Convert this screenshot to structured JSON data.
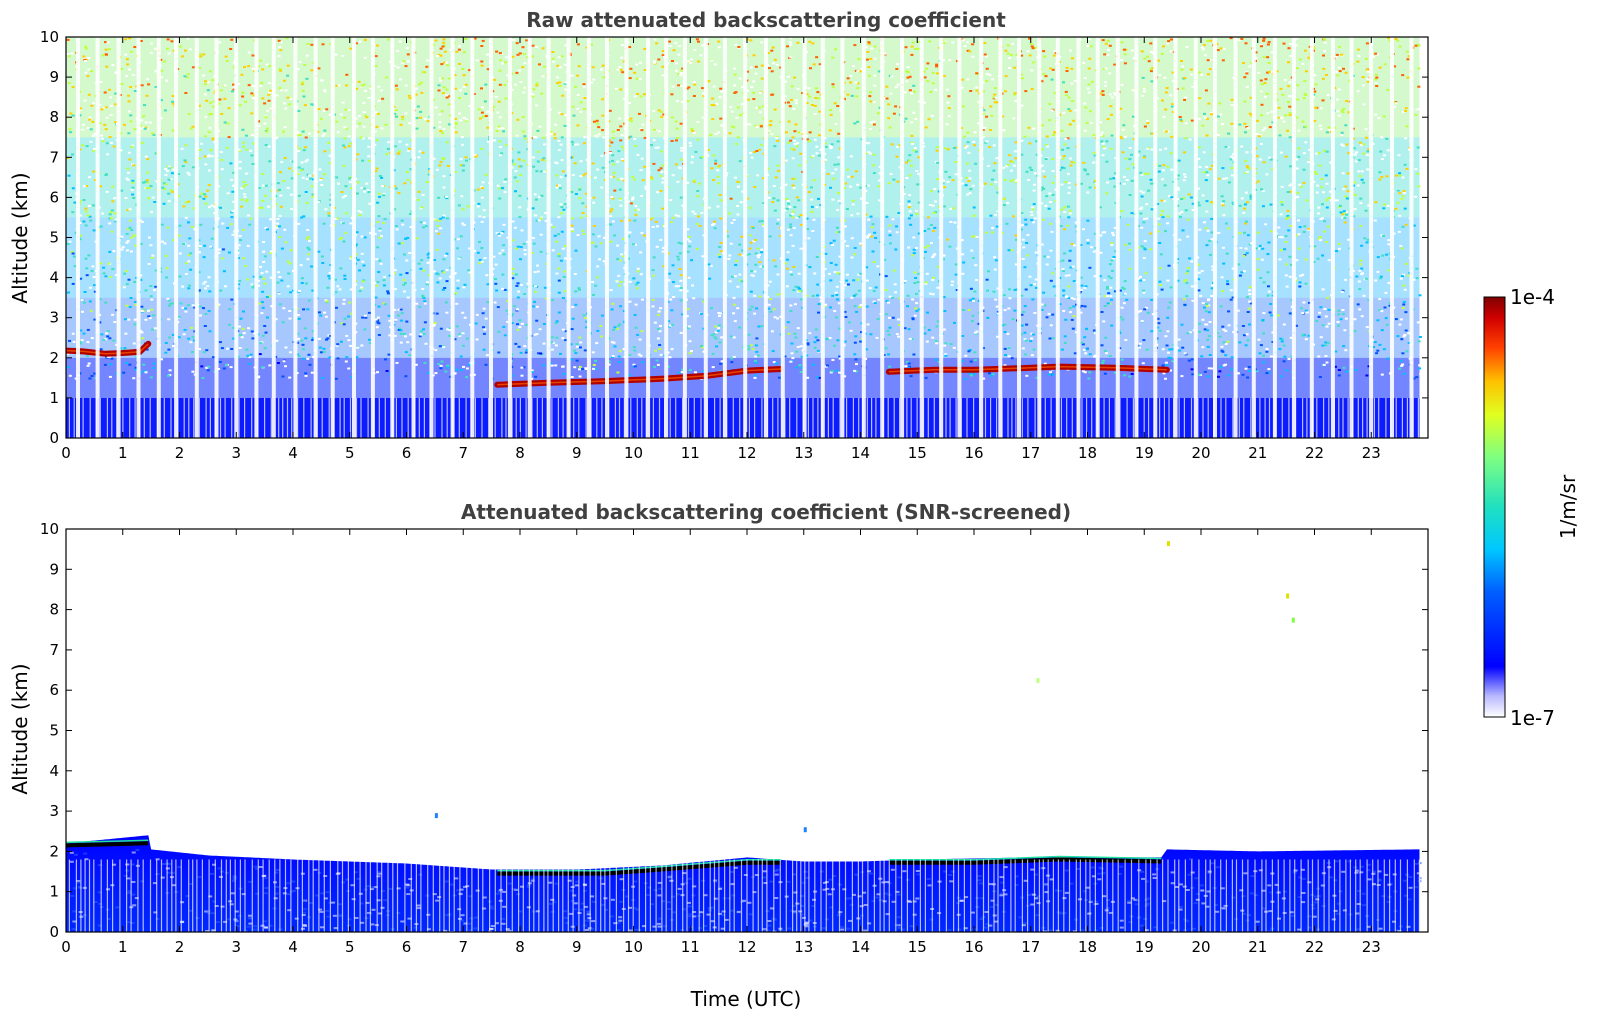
{
  "chart_data": [
    {
      "type": "heatmap",
      "title": "Raw attenuated backscattering coefficient",
      "xlabel": "",
      "ylabel": "Altitude (km)",
      "xlim": [
        0,
        24
      ],
      "ylim": [
        0,
        10
      ],
      "x_ticks": [
        0,
        1,
        2,
        3,
        4,
        5,
        6,
        7,
        8,
        9,
        10,
        11,
        12,
        13,
        14,
        15,
        16,
        17,
        18,
        19,
        20,
        21,
        22,
        23
      ],
      "y_ticks": [
        0,
        1,
        2,
        3,
        4,
        5,
        6,
        7,
        8,
        9,
        10
      ],
      "layer_altitude_km": [
        [
          0.0,
          2.18
        ],
        [
          0.3,
          2.16
        ],
        [
          0.7,
          2.1
        ],
        [
          1.0,
          2.12
        ],
        [
          1.3,
          2.15
        ],
        [
          1.45,
          2.35
        ],
        [
          7.6,
          1.33
        ],
        [
          8.5,
          1.38
        ],
        [
          9.5,
          1.42
        ],
        [
          10.5,
          1.48
        ],
        [
          11.3,
          1.55
        ],
        [
          12.0,
          1.68
        ],
        [
          12.6,
          1.72
        ],
        [
          14.5,
          1.65
        ],
        [
          15.3,
          1.7
        ],
        [
          16.0,
          1.7
        ],
        [
          17.0,
          1.75
        ],
        [
          17.5,
          1.78
        ],
        [
          18.5,
          1.75
        ],
        [
          19.4,
          1.7
        ]
      ],
      "colormap": "jet",
      "grid": false
    },
    {
      "type": "heatmap",
      "title": "Attenuated backscattering coefficient (SNR-screened)",
      "xlabel": "Time (UTC)",
      "ylabel": "Altitude (km)",
      "xlim": [
        0,
        24
      ],
      "ylim": [
        0,
        10
      ],
      "x_ticks": [
        0,
        1,
        2,
        3,
        4,
        5,
        6,
        7,
        8,
        9,
        10,
        11,
        12,
        13,
        14,
        15,
        16,
        17,
        18,
        19,
        20,
        21,
        22,
        23
      ],
      "y_ticks": [
        0,
        1,
        2,
        3,
        4,
        5,
        6,
        7,
        8,
        9,
        10
      ],
      "boundary_layer_top_km": [
        [
          0.0,
          2.2
        ],
        [
          1.45,
          2.4
        ],
        [
          1.5,
          2.05
        ],
        [
          2.5,
          1.9
        ],
        [
          4.0,
          1.8
        ],
        [
          6.0,
          1.7
        ],
        [
          7.5,
          1.55
        ],
        [
          9.0,
          1.55
        ],
        [
          10.5,
          1.65
        ],
        [
          12.0,
          1.85
        ],
        [
          13.0,
          1.75
        ],
        [
          14.0,
          1.75
        ],
        [
          15.0,
          1.8
        ],
        [
          17.0,
          1.85
        ],
        [
          19.3,
          1.85
        ],
        [
          19.4,
          2.05
        ],
        [
          21.0,
          2.0
        ],
        [
          23.8,
          2.05
        ]
      ],
      "colormap": "jet",
      "grid": false
    }
  ],
  "colorbar": {
    "label": "1/m/sr",
    "max_label": "1e-4",
    "min_label": "1e-7",
    "scale": "log"
  }
}
